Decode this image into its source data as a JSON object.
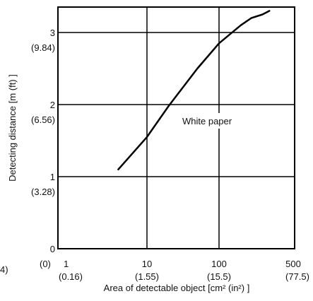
{
  "chart_data": {
    "type": "line",
    "xscale": "log",
    "xlim": [
      1,
      500
    ],
    "ylim": [
      0,
      3.4
    ],
    "grid": true,
    "xlabel": "Area of detectable object [cm² (in²) ]",
    "ylabel": "Detecting distance [m (ft) ]",
    "x_ticks": [
      {
        "value": 1,
        "label": "1",
        "sub": "(0.16)"
      },
      {
        "value": 10,
        "label": "10",
        "sub": "(1.55)"
      },
      {
        "value": 100,
        "label": "100",
        "sub": "(15.5)"
      },
      {
        "value": 500,
        "label": "500",
        "sub": "(77.5)"
      }
    ],
    "y_ticks": [
      {
        "value": 0,
        "label": "0",
        "sub": "(0)"
      },
      {
        "value": 1,
        "label": "1",
        "sub": "(3.28)"
      },
      {
        "value": 2,
        "label": "2",
        "sub": "(6.56)"
      },
      {
        "value": 3,
        "label": "3",
        "sub": "(9.84)"
      }
    ],
    "series": [
      {
        "name": "White paper",
        "x": [
          4,
          10,
          20,
          50,
          100,
          200,
          280,
          400,
          500
        ],
        "y": [
          1.1,
          1.55,
          1.98,
          2.5,
          2.85,
          3.1,
          3.2,
          3.25,
          3.3
        ]
      }
    ],
    "stray_label": "4)"
  }
}
